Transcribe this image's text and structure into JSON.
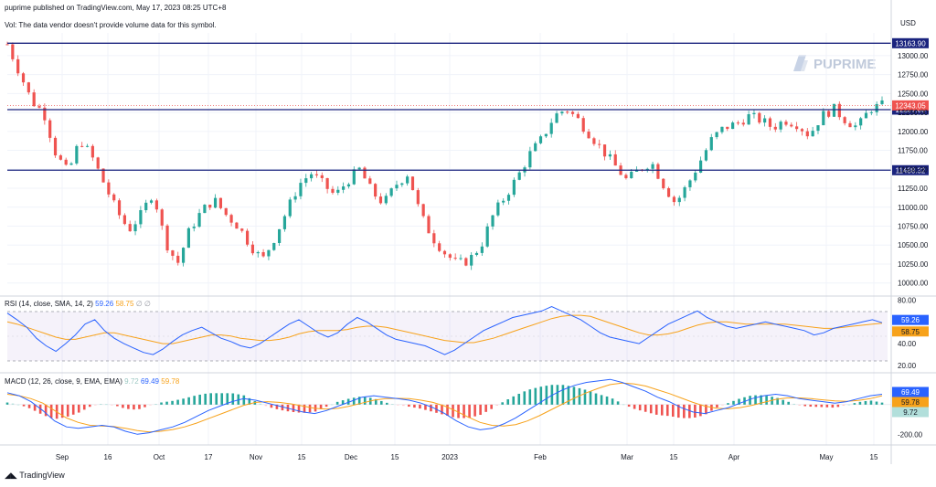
{
  "header": {
    "published": "puprime published on TradingView.com, May 17, 2023 08:25 UTC+8",
    "volume_note": "Vol: The data vendor doesn't provide volume data for this symbol.",
    "currency": "USD"
  },
  "brand": {
    "name": "PUPRIME",
    "footer": "TradingView"
  },
  "colors": {
    "up": "#26a69a",
    "down": "#ef5350",
    "level": "#1a237e",
    "rsi": "#2962ff",
    "rsi_ma": "#f7a21b",
    "last_price": "#ef5350"
  },
  "indicators": {
    "rsi_title": "RSI (14, close, SMA, 14, 2)",
    "rsi_value": "59.26",
    "rsi_ma_value": "58.75",
    "rsi_extra": "∅ ∅",
    "macd_title": "MACD (12, 26, close, 9, EMA, EMA)",
    "macd_hist": "9.72",
    "macd_line": "69.49",
    "macd_signal": "59.78"
  },
  "chart_data": {
    "type": "candlestick",
    "ylim": [
      9900,
      13300
    ],
    "yticks": [
      "13000.00",
      "12750.00",
      "12500.00",
      "12250.00",
      "12000.00",
      "11750.00",
      "11500.00",
      "11250.00",
      "11000.00",
      "10750.00",
      "10500.00",
      "10250.00",
      "10000.00"
    ],
    "xticks": [
      "Sep",
      "16",
      "Oct",
      "17",
      "Nov",
      "15",
      "Dec",
      "15",
      "2023",
      "Feb",
      "Mar",
      "15",
      "Apr",
      "May",
      "15"
    ],
    "levels": [
      {
        "label": "13163.90",
        "value": 13163.9
      },
      {
        "label": "12287.68",
        "value": 12287.68
      },
      {
        "label": "11488.32",
        "value": 11488.32
      }
    ],
    "last_price": {
      "label": "12343.05",
      "value": 12343.05
    },
    "close_path": [
      13150,
      12780,
      12400,
      12250,
      11700,
      11450,
      11900,
      11650,
      11300,
      10950,
      10700,
      10900,
      11200,
      10550,
      10250,
      10700,
      10950,
      11100,
      10900,
      10750,
      10500,
      10300,
      10600,
      10950,
      11300,
      11450,
      11300,
      11150,
      11350,
      11500,
      11200,
      11050,
      11300,
      11450,
      10900,
      10600,
      10400,
      10250,
      10300,
      10500,
      10900,
      11150,
      11400,
      11700,
      11900,
      12200,
      12300,
      12150,
      11950,
      11750,
      11550,
      11350,
      11500,
      11600,
      11300,
      11050,
      11300,
      11600,
      11900,
      12050,
      12100,
      12200,
      12150,
      12050,
      12150,
      12100,
      11950,
      12200,
      12300,
      12150,
      12050,
      12300,
      12343
    ]
  },
  "rsi_data": {
    "ylim": [
      15,
      82
    ],
    "yticks": [
      "80.00",
      "60.00",
      "40.00",
      "20.00"
    ],
    "band": [
      30,
      70
    ],
    "rsi": [
      68,
      62,
      55,
      45,
      38,
      33,
      40,
      48,
      58,
      62,
      52,
      45,
      40,
      36,
      32,
      30,
      35,
      42,
      48,
      52,
      55,
      50,
      45,
      42,
      38,
      36,
      40,
      46,
      52,
      58,
      62,
      56,
      50,
      46,
      50,
      58,
      64,
      60,
      54,
      48,
      44,
      42,
      40,
      38,
      34,
      30,
      34,
      40,
      46,
      52,
      56,
      60,
      64,
      66,
      68,
      70,
      74,
      70,
      66,
      62,
      56,
      50,
      46,
      44,
      42,
      40,
      46,
      52,
      58,
      62,
      66,
      70,
      64,
      60,
      56,
      54,
      56,
      58,
      60,
      58,
      56,
      54,
      52,
      48,
      50,
      54,
      56,
      58,
      60,
      62,
      59.26
    ],
    "ma": [
      60,
      58,
      55,
      52,
      49,
      46,
      44,
      44,
      46,
      48,
      50,
      50,
      48,
      46,
      44,
      42,
      40,
      40,
      42,
      44,
      46,
      48,
      48,
      47,
      45,
      44,
      43,
      43,
      44,
      46,
      49,
      51,
      52,
      52,
      52,
      53,
      55,
      56,
      56,
      55,
      53,
      51,
      49,
      47,
      45,
      43,
      42,
      41,
      41,
      43,
      45,
      48,
      51,
      54,
      57,
      60,
      63,
      65,
      66,
      66,
      65,
      62,
      59,
      56,
      53,
      50,
      48,
      48,
      49,
      51,
      54,
      57,
      59,
      60,
      60,
      59,
      58,
      58,
      58,
      58,
      58,
      57,
      56,
      55,
      54,
      54,
      55,
      56,
      57,
      58,
      58.75
    ]
  },
  "macd_data": {
    "ylim": [
      -260,
      190
    ],
    "yticks": [
      "-200.00"
    ],
    "macd": [
      80,
      60,
      20,
      -40,
      -110,
      -150,
      -160,
      -150,
      -140,
      -150,
      -180,
      -200,
      -190,
      -170,
      -150,
      -120,
      -80,
      -40,
      -10,
      20,
      40,
      30,
      10,
      -10,
      -30,
      -50,
      -60,
      -40,
      -10,
      20,
      50,
      60,
      50,
      40,
      30,
      10,
      -20,
      -60,
      -110,
      -150,
      -170,
      -160,
      -130,
      -90,
      -40,
      10,
      60,
      100,
      130,
      150,
      160,
      170,
      150,
      120,
      90,
      50,
      20,
      -20,
      -50,
      -60,
      -40,
      -20,
      10,
      40,
      60,
      70,
      60,
      40,
      30,
      20,
      10,
      20,
      40,
      60,
      69.49
    ],
    "signal": [
      70,
      60,
      40,
      10,
      -40,
      -90,
      -120,
      -140,
      -145,
      -148,
      -160,
      -175,
      -185,
      -180,
      -168,
      -150,
      -125,
      -95,
      -65,
      -35,
      -5,
      15,
      20,
      15,
      5,
      -10,
      -25,
      -30,
      -25,
      -10,
      10,
      30,
      40,
      42,
      40,
      30,
      15,
      -10,
      -45,
      -85,
      -120,
      -140,
      -145,
      -135,
      -110,
      -75,
      -35,
      5,
      45,
      80,
      110,
      135,
      145,
      140,
      125,
      100,
      75,
      45,
      15,
      -10,
      -25,
      -28,
      -20,
      -5,
      15,
      35,
      45,
      45,
      40,
      32,
      25,
      22,
      28,
      40,
      59.78
    ]
  }
}
